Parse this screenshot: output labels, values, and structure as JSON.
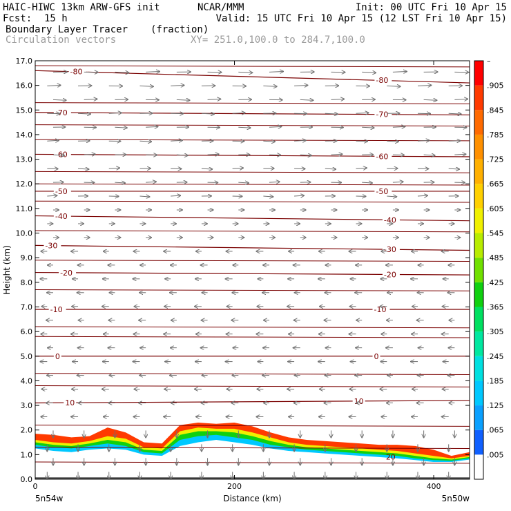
{
  "header": {
    "model": "HAIC-HIWC 13km ARW-GFS init",
    "org": "NCAR/MMM",
    "init": "Init: 00 UTC Fri 10 Apr 15",
    "fcst_label": "Fcst:",
    "fcst_value": "15 h",
    "valid": "Valid: 15 UTC Fri 10 Apr 15 (12 LST Fri 10 Apr 15)",
    "field_name": "Boundary Layer Tracer",
    "field_units": "(fraction)",
    "vectors_label": "Circulation vectors",
    "xy_range": "XY= 251.0,100.0 to 284.7,100.0"
  },
  "colors": {
    "isotherm": "#7a0000",
    "vector": "#707070",
    "terrain_line": "#000000"
  },
  "chart_data": {
    "type": "heatmap",
    "xlabel": "Distance (km)",
    "ylabel": "Height (km)",
    "xlim": [
      0,
      436
    ],
    "ylim": [
      0,
      17
    ],
    "x_ticks": [
      0,
      200,
      400
    ],
    "y_ticks": [
      "0.0",
      "1.0",
      "2.0",
      "3.0",
      "4.0",
      "5.0",
      "6.0",
      "7.0",
      "8.0",
      "9.0",
      "10.0",
      "11.0",
      "12.0",
      "13.0",
      "14.0",
      "15.0",
      "16.0",
      "17.0"
    ],
    "x_endpoint_left": "5n54w",
    "x_endpoint_right": "5n50w",
    "colorbar": {
      "labels": [
        ".005",
        ".065",
        ".125",
        ".185",
        ".245",
        ".305",
        ".365",
        ".425",
        ".485",
        ".545",
        ".605",
        ".665",
        ".725",
        ".785",
        ".845",
        ".905",
        "–"
      ],
      "colors": [
        "#ffffff",
        "#1060ff",
        "#0aa0ff",
        "#00c8ff",
        "#00e0e0",
        "#00e8a0",
        "#00e060",
        "#10d010",
        "#70e000",
        "#b8ec00",
        "#f0f000",
        "#ffd000",
        "#ffb000",
        "#ff9000",
        "#ff6a00",
        "#ff3a00",
        "#ff0000"
      ]
    },
    "isotherms": [
      {
        "label": "-80",
        "y_left": 16.6,
        "y_right": 16.1,
        "label_x": [
          35,
          342
        ]
      },
      {
        "label": "-70",
        "y_left": 14.9,
        "y_right": 14.8,
        "label_x": [
          20,
          342
        ]
      },
      {
        "label": "-60",
        "y_left": 13.2,
        "y_right": 13.1,
        "label_x": [
          20,
          342
        ]
      },
      {
        "label": "-50",
        "y_left": 11.7,
        "y_right": 11.7,
        "label_x": [
          20,
          342
        ]
      },
      {
        "label": "-40",
        "y_left": 10.7,
        "y_right": 10.5,
        "label_x": [
          20,
          350
        ]
      },
      {
        "label": "-30",
        "y_left": 9.5,
        "y_right": 9.3,
        "label_x": [
          10,
          350
        ]
      },
      {
        "label": "-20",
        "y_left": 8.4,
        "y_right": 8.3,
        "label_x": [
          25,
          350
        ]
      },
      {
        "label": "-10",
        "y_left": 6.9,
        "y_right": 6.9,
        "label_x": [
          15,
          340
        ]
      },
      {
        "label": "0",
        "y_left": 5.0,
        "y_right": 5.0,
        "label_x": [
          20,
          340
        ]
      },
      {
        "label": "10",
        "y_left": 3.1,
        "y_right": 3.2,
        "label_x": [
          30,
          320
        ]
      }
    ],
    "extra_contour_levels": [
      16.8,
      15.3,
      14.4,
      13.8,
      12.5,
      12.0,
      11.3,
      10.1,
      8.9,
      7.7,
      6.2,
      5.8,
      4.3,
      3.8,
      2.2,
      1.3,
      0.7
    ],
    "low_label": "20",
    "tracer_layers": [
      {
        "value": 0.95,
        "top": [
          1.85,
          1.8,
          1.7,
          1.75,
          2.1,
          1.9,
          1.5,
          1.45,
          2.2,
          2.3,
          2.25,
          2.3,
          2.15,
          1.9,
          1.7,
          1.6,
          1.55,
          1.5,
          1.45,
          1.4,
          1.4,
          1.35,
          1.2,
          0.95,
          1.1
        ]
      },
      {
        "value": 0.6,
        "top": [
          1.6,
          1.5,
          1.45,
          1.55,
          1.75,
          1.65,
          1.3,
          1.25,
          1.95,
          2.1,
          2.05,
          2.05,
          1.9,
          1.7,
          1.5,
          1.4,
          1.35,
          1.3,
          1.25,
          1.2,
          1.15,
          1.05,
          0.95,
          0.85,
          0.95
        ]
      },
      {
        "value": 0.45,
        "top": [
          1.5,
          1.4,
          1.35,
          1.45,
          1.6,
          1.5,
          1.2,
          1.15,
          1.8,
          1.95,
          1.95,
          1.9,
          1.75,
          1.55,
          1.4,
          1.3,
          1.25,
          1.2,
          1.15,
          1.1,
          1.05,
          0.95,
          0.85,
          0.8,
          0.9
        ]
      },
      {
        "value": 0.2,
        "top": [
          1.4,
          1.3,
          1.25,
          1.35,
          1.45,
          1.35,
          1.1,
          1.05,
          1.6,
          1.75,
          1.8,
          1.7,
          1.6,
          1.4,
          1.3,
          1.2,
          1.15,
          1.1,
          1.05,
          1.0,
          0.95,
          0.85,
          0.78,
          0.75,
          0.85
        ]
      },
      {
        "value": 0.01,
        "top": [
          1.25,
          1.15,
          1.1,
          1.2,
          1.25,
          1.2,
          1.0,
          0.95,
          1.35,
          1.5,
          1.6,
          1.5,
          1.4,
          1.25,
          1.15,
          1.1,
          1.05,
          1.0,
          0.95,
          0.9,
          0.85,
          0.78,
          0.7,
          0.7,
          0.8
        ]
      }
    ]
  }
}
